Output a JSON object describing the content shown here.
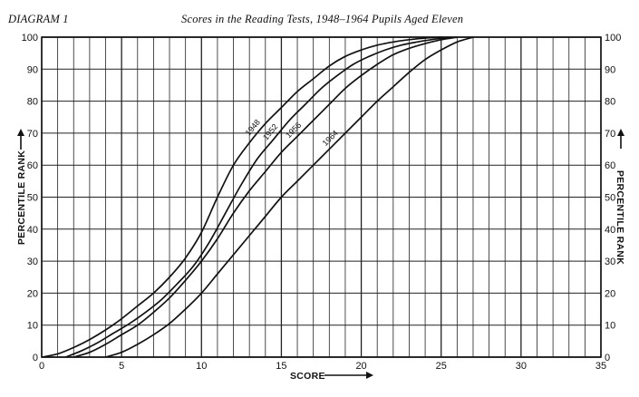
{
  "header": {
    "diagram_label": "DIAGRAM 1",
    "title": "Scores in the Reading Tests, 1948–1964 Pupils Aged Eleven"
  },
  "chart_data": {
    "type": "line",
    "title": "Scores in the Reading Tests, 1948–1964 Pupils Aged Eleven",
    "xlabel": "SCORE",
    "ylabel_left": "PERCENTILE RANK",
    "ylabel_right": "PERCENTILE RANK",
    "xlim": [
      0,
      35
    ],
    "ylim": [
      0,
      100
    ],
    "x_ticks": [
      "0",
      "5",
      "10",
      "15",
      "20",
      "25",
      "30",
      "35"
    ],
    "y_ticks": [
      "0",
      "10",
      "20",
      "30",
      "40",
      "50",
      "60",
      "70",
      "80",
      "90",
      "100"
    ],
    "grid": true,
    "series": [
      {
        "name": "1948",
        "points": [
          [
            0,
            0
          ],
          [
            1,
            1
          ],
          [
            2,
            3
          ],
          [
            3,
            5.5
          ],
          [
            4,
            8.5
          ],
          [
            5,
            12
          ],
          [
            6,
            16
          ],
          [
            7,
            20
          ],
          [
            8,
            25
          ],
          [
            9,
            31
          ],
          [
            10,
            39
          ],
          [
            11,
            50
          ],
          [
            12,
            60
          ],
          [
            13,
            67
          ],
          [
            14,
            73
          ],
          [
            15,
            78
          ],
          [
            16,
            83
          ],
          [
            17,
            87
          ],
          [
            18,
            91
          ],
          [
            19,
            94
          ],
          [
            20,
            96
          ],
          [
            21,
            97.5
          ],
          [
            22,
            98.5
          ],
          [
            23,
            99.2
          ],
          [
            24,
            99.7
          ],
          [
            25,
            100
          ]
        ]
      },
      {
        "name": "1952",
        "points": [
          [
            1.5,
            0
          ],
          [
            2.5,
            2
          ],
          [
            3.5,
            4.5
          ],
          [
            4.5,
            7.5
          ],
          [
            5.5,
            10.5
          ],
          [
            6.5,
            14
          ],
          [
            7.5,
            18
          ],
          [
            8.5,
            23
          ],
          [
            9.5,
            28.5
          ],
          [
            10.5,
            36
          ],
          [
            11.5,
            45
          ],
          [
            12.5,
            54
          ],
          [
            13.5,
            62
          ],
          [
            14.5,
            68
          ],
          [
            15.5,
            74
          ],
          [
            16.5,
            79
          ],
          [
            17.5,
            84
          ],
          [
            18.5,
            88
          ],
          [
            19.5,
            91.5
          ],
          [
            20.5,
            94
          ],
          [
            21.5,
            96
          ],
          [
            22.5,
            97.5
          ],
          [
            23.5,
            98.5
          ],
          [
            24.5,
            99.3
          ],
          [
            25.5,
            100
          ]
        ]
      },
      {
        "name": "1956",
        "points": [
          [
            2,
            0
          ],
          [
            3,
            1.5
          ],
          [
            4,
            4
          ],
          [
            5,
            7
          ],
          [
            6,
            10
          ],
          [
            7,
            14
          ],
          [
            8,
            18.5
          ],
          [
            9,
            24
          ],
          [
            10,
            30
          ],
          [
            11,
            37
          ],
          [
            12,
            45
          ],
          [
            13,
            52
          ],
          [
            14,
            58
          ],
          [
            15,
            64
          ],
          [
            16,
            69
          ],
          [
            17,
            74
          ],
          [
            18,
            79
          ],
          [
            19,
            84
          ],
          [
            20,
            88
          ],
          [
            21,
            91.5
          ],
          [
            22,
            94.5
          ],
          [
            23,
            96.5
          ],
          [
            24,
            98
          ],
          [
            25,
            99.2
          ],
          [
            26,
            100
          ]
        ]
      },
      {
        "name": "1964",
        "points": [
          [
            4,
            0
          ],
          [
            5,
            1.5
          ],
          [
            6,
            4
          ],
          [
            7,
            7
          ],
          [
            8,
            10.5
          ],
          [
            9,
            15
          ],
          [
            10,
            20
          ],
          [
            11,
            26
          ],
          [
            12,
            32
          ],
          [
            13,
            38
          ],
          [
            14,
            44
          ],
          [
            15,
            50
          ],
          [
            16,
            55
          ],
          [
            17,
            60
          ],
          [
            18,
            65
          ],
          [
            19,
            70
          ],
          [
            20,
            75
          ],
          [
            21,
            80
          ],
          [
            22,
            84.5
          ],
          [
            23,
            89
          ],
          [
            24,
            93
          ],
          [
            25,
            96
          ],
          [
            26,
            98.5
          ],
          [
            27,
            100
          ]
        ]
      }
    ]
  }
}
